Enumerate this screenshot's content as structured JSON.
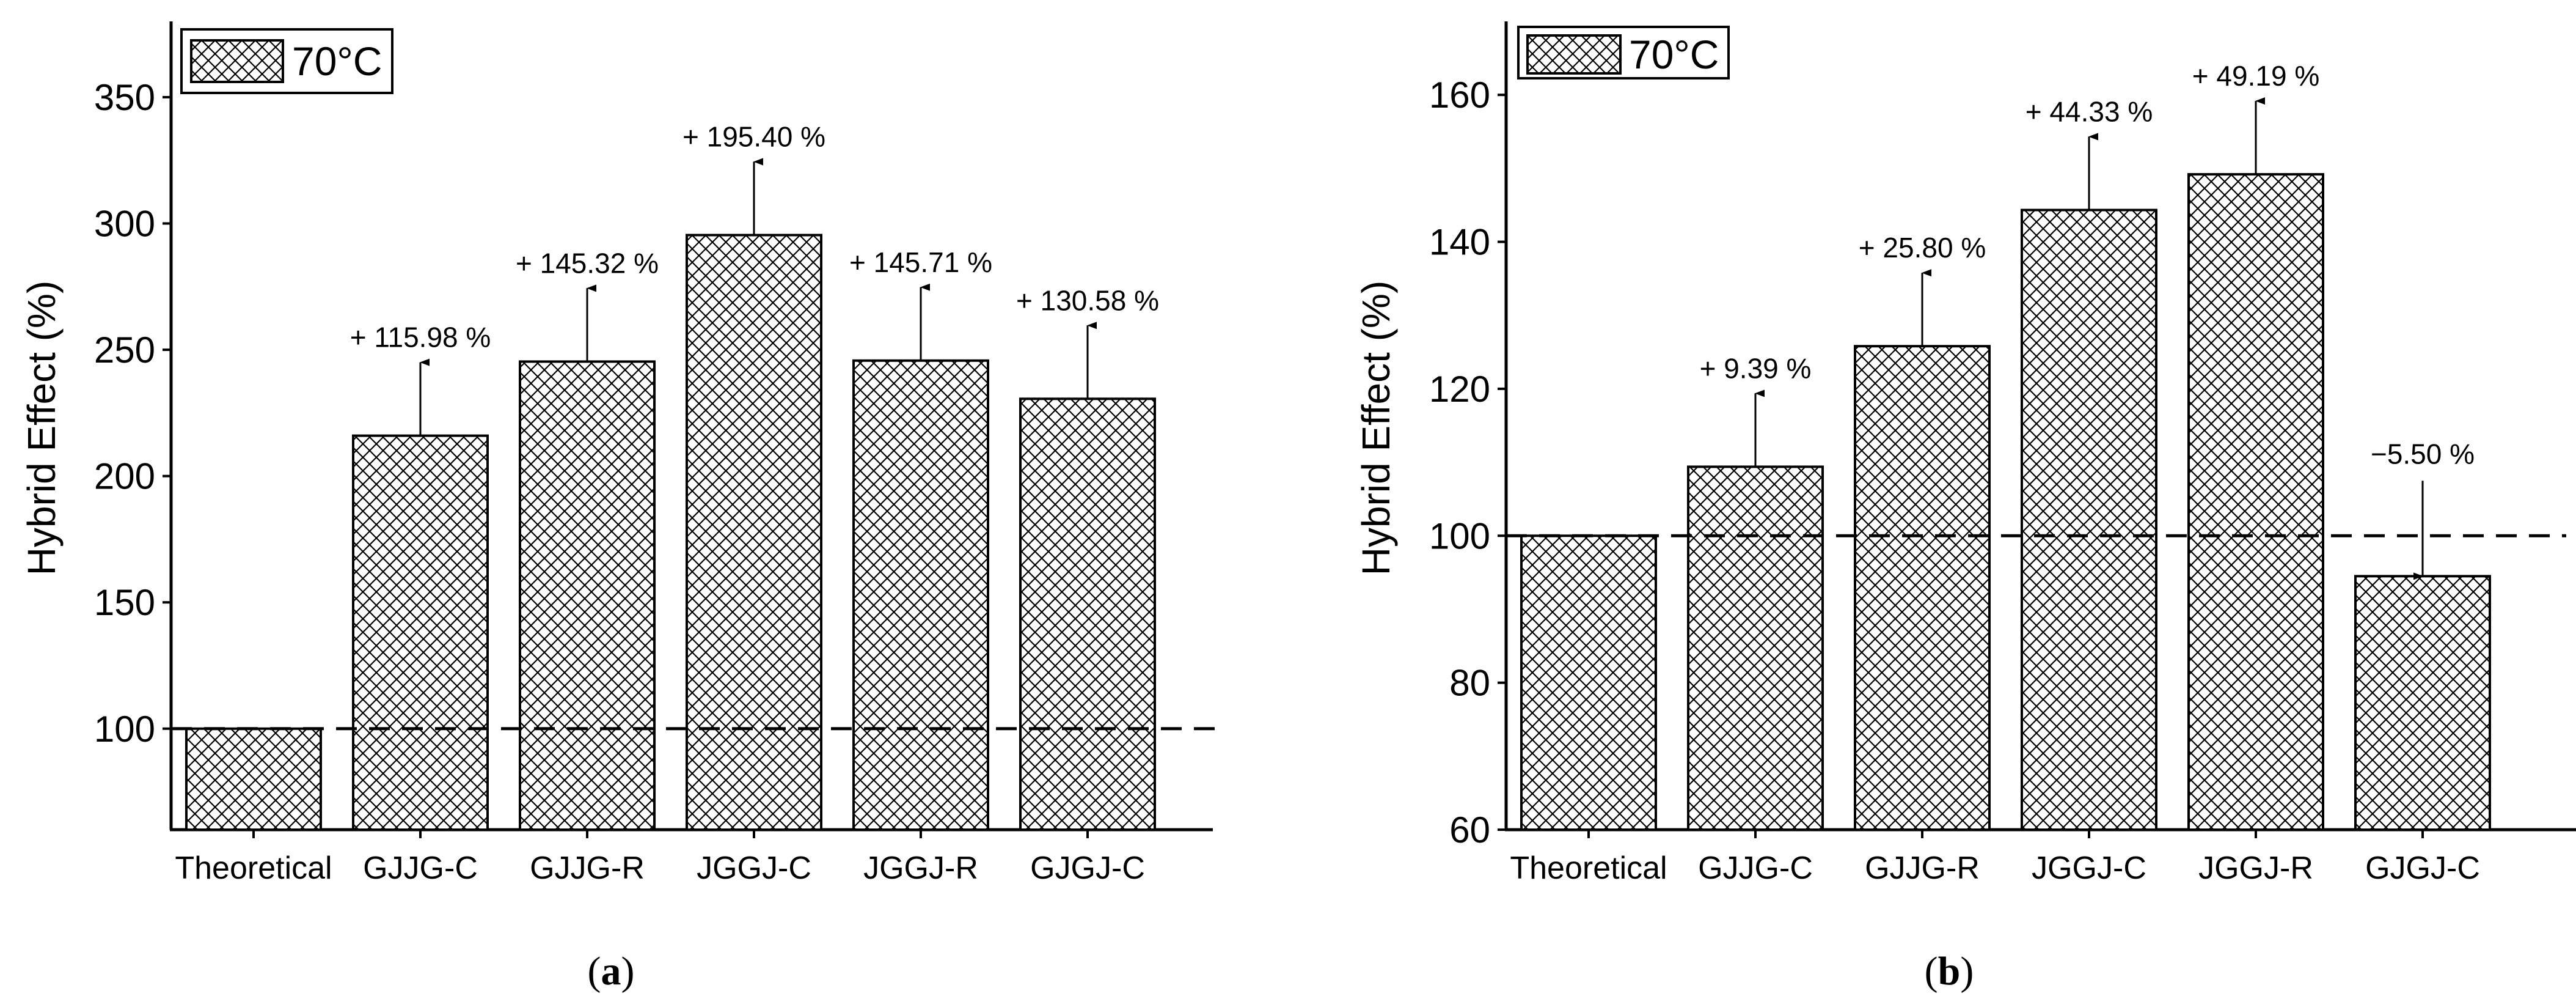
{
  "colors": {
    "ink": "#000000",
    "background": "#ffffff",
    "bar_fill": "#ffffff"
  },
  "chart_data": [
    {
      "type": "bar",
      "panel": "a",
      "caption": {
        "open": "(",
        "letter": "a",
        "close": ")"
      },
      "legend": {
        "label": "70°C",
        "pattern": "crosshatch",
        "placement": "top-left"
      },
      "ylabel": "Hybrid Effect (%)",
      "xlabel": "",
      "ylim": [
        60,
        380
      ],
      "yticks": [
        100,
        150,
        200,
        250,
        300,
        350
      ],
      "reference_line": 100,
      "categories": [
        "Theoretical",
        "GJJG-C",
        "GJJG-R",
        "JGGJ-C",
        "JGGJ-R",
        "GJGJ-C"
      ],
      "values": [
        100,
        215.98,
        245.32,
        295.4,
        245.71,
        230.58
      ],
      "annotations": [
        null,
        "+ 115.98 %",
        "+ 145.32 %",
        "+ 195.40 %",
        "+ 145.71 %",
        "+ 130.58 %"
      ]
    },
    {
      "type": "bar",
      "panel": "b",
      "caption": {
        "open": "(",
        "letter": "b",
        "close": ")"
      },
      "legend": {
        "label": "70°C",
        "pattern": "crosshatch",
        "placement": "top-left"
      },
      "ylabel": "Hybrid Effect (%)",
      "xlabel": "",
      "ylim": [
        60,
        170
      ],
      "yticks": [
        60,
        80,
        100,
        120,
        140,
        160
      ],
      "reference_line": 100,
      "categories": [
        "Theoretical",
        "GJJG-C",
        "GJJG-R",
        "JGGJ-C",
        "JGGJ-R",
        "GJGJ-C"
      ],
      "values": [
        100,
        109.39,
        125.8,
        144.33,
        149.19,
        94.5
      ],
      "annotations": [
        null,
        "+ 9.39 %",
        "+ 25.80 %",
        "+ 44.33 %",
        "+ 49.19 %",
        "−5.50 %"
      ]
    }
  ]
}
